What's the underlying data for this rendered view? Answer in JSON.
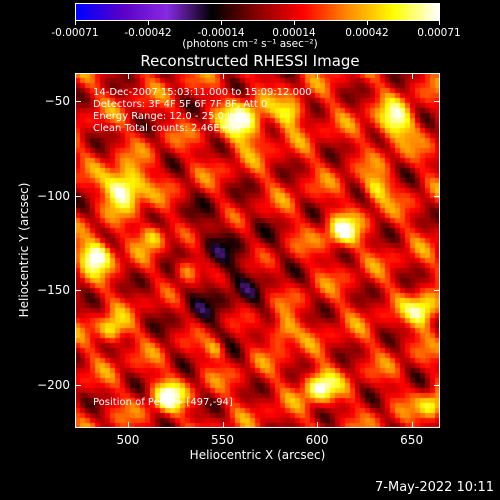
{
  "title": "Reconstructed RHESSI Image",
  "colorbar": {
    "ticks": [
      "-0.00071",
      "-0.00042",
      "-0.00014",
      "0.00014",
      "0.00042",
      "0.00071"
    ],
    "tick_values": [
      -0.00071,
      -0.00042,
      -0.00014,
      0.00014,
      0.00042,
      0.00071
    ],
    "unit": "(photons cm⁻² s⁻¹ asec⁻²)",
    "colors": [
      "#0000ff",
      "#5a00c8",
      "#8a2be2",
      "#000000",
      "#8b0000",
      "#ff0000",
      "#ff8c00",
      "#ffff00",
      "#ffffff"
    ]
  },
  "annotations": {
    "time_range": "14-Dec-2007 15:03:11.000 to 15:09:12.000",
    "detectors": "Detectors: 3F 4F 5F 6F 7F 8F, Att 0",
    "energy_range": "Energy Range: 12.0 - 25.0 keV",
    "method": "Clean     Total counts: 2.46E+04",
    "peak": "Position of Peak = [497,-94]"
  },
  "timestamp": "7-May-2022 10:11",
  "chart_data": {
    "type": "heatmap",
    "title": "Reconstructed RHESSI Image",
    "xlabel": "Heliocentric X (arcsec)",
    "ylabel": "Heliocentric Y (arcsec)",
    "xlim": [
      472,
      665
    ],
    "ylim": [
      -223,
      -35
    ],
    "xticks": [
      500,
      550,
      600,
      650
    ],
    "xtick_labels": [
      "500",
      "550",
      "600",
      "650"
    ],
    "yticks": [
      -50,
      -100,
      -150,
      -200
    ],
    "ytick_labels": [
      "−50",
      "−100",
      "−150",
      "−200"
    ],
    "value_range": [
      -0.00071,
      0.00071
    ],
    "peak_position": [
      497,
      -94
    ],
    "colormap_stops": [
      "#0000ff",
      "#5a00c8",
      "#8a2be2",
      "#000000",
      "#8b0000",
      "#ff0000",
      "#ff8c00",
      "#ffff00",
      "#ffffff"
    ]
  }
}
